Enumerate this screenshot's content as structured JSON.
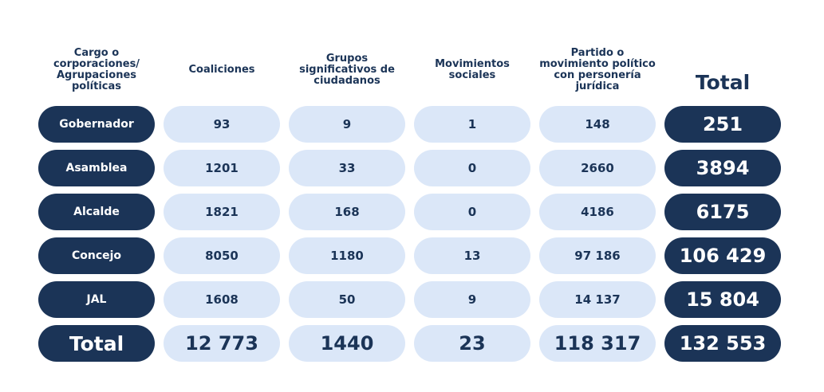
{
  "chart_data": {
    "type": "table",
    "columns": [
      "Cargo o corporaciones/ Agrupaciones políticas",
      "Coaliciones",
      "Grupos significativos de ciudadanos",
      "Movimientos sociales",
      "Partido o movimiento político con personería jurídica",
      "Total"
    ],
    "column_lines": [
      [
        "Cargo o",
        "corporaciones/",
        "Agrupaciones",
        "políticas"
      ],
      [
        "Coaliciones"
      ],
      [
        "Grupos",
        "significativos de",
        "ciudadanos"
      ],
      [
        "Movimientos",
        "sociales"
      ],
      [
        "Partido o",
        "movimiento político",
        "con personería",
        "jurídica"
      ],
      [
        "Total"
      ]
    ],
    "rows": [
      {
        "label": "Gobernador",
        "values": [
          "93",
          "9",
          "1",
          "148"
        ],
        "total": "251"
      },
      {
        "label": "Asamblea",
        "values": [
          "1201",
          "33",
          "0",
          "2660"
        ],
        "total": "3894"
      },
      {
        "label": "Alcalde",
        "values": [
          "1821",
          "168",
          "0",
          "4186"
        ],
        "total": "6175"
      },
      {
        "label": "Concejo",
        "values": [
          "8050",
          "1180",
          "13",
          "97 186"
        ],
        "total": "106 429"
      },
      {
        "label": "JAL",
        "values": [
          "1608",
          "50",
          "9",
          "14 137"
        ],
        "total": "15 804"
      }
    ],
    "total_row": {
      "label": "Total",
      "values": [
        "12 773",
        "1440",
        "23",
        "118 317"
      ],
      "total": "132 553"
    },
    "colors": {
      "dark": "#1b3457",
      "light": "#dbe7f8",
      "text_dark": "#1b3457",
      "text_light": "#ffffff"
    }
  }
}
